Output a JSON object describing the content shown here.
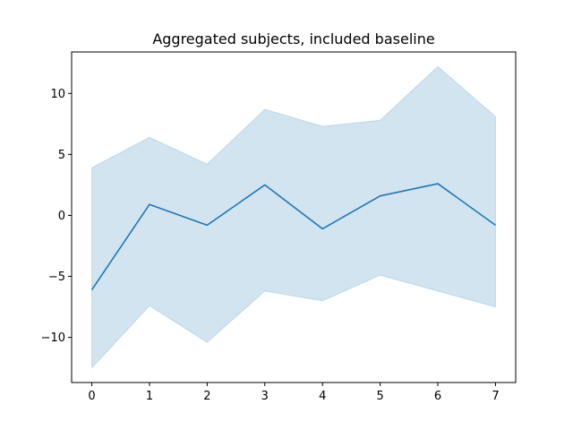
{
  "chart_data": {
    "type": "line",
    "title": "Aggregated subjects, included baseline",
    "xlabel": "",
    "ylabel": "",
    "x": [
      0,
      1,
      2,
      3,
      4,
      5,
      6,
      7
    ],
    "xticks": [
      "0",
      "1",
      "2",
      "3",
      "4",
      "5",
      "6",
      "7"
    ],
    "yticks": [
      -10,
      -5,
      0,
      5,
      10
    ],
    "ytick_labels": [
      "−10",
      "−5",
      "0",
      "5",
      "10"
    ],
    "xlim": [
      -0.35,
      7.35
    ],
    "ylim": [
      -13.7,
      13.4
    ],
    "grid": false,
    "series": [
      {
        "values": [
          -6.1,
          0.9,
          -0.8,
          2.5,
          -1.1,
          1.6,
          2.6,
          -0.8
        ],
        "lower": [
          -12.5,
          -7.4,
          -10.4,
          -6.2,
          -7.0,
          -4.9,
          -6.2,
          -7.5
        ],
        "upper": [
          3.9,
          6.4,
          4.2,
          8.7,
          7.3,
          7.8,
          12.2,
          8.1
        ],
        "color": "#1f77b4",
        "band_color": "#1f77b4",
        "band_opacity": 0.2
      }
    ]
  }
}
